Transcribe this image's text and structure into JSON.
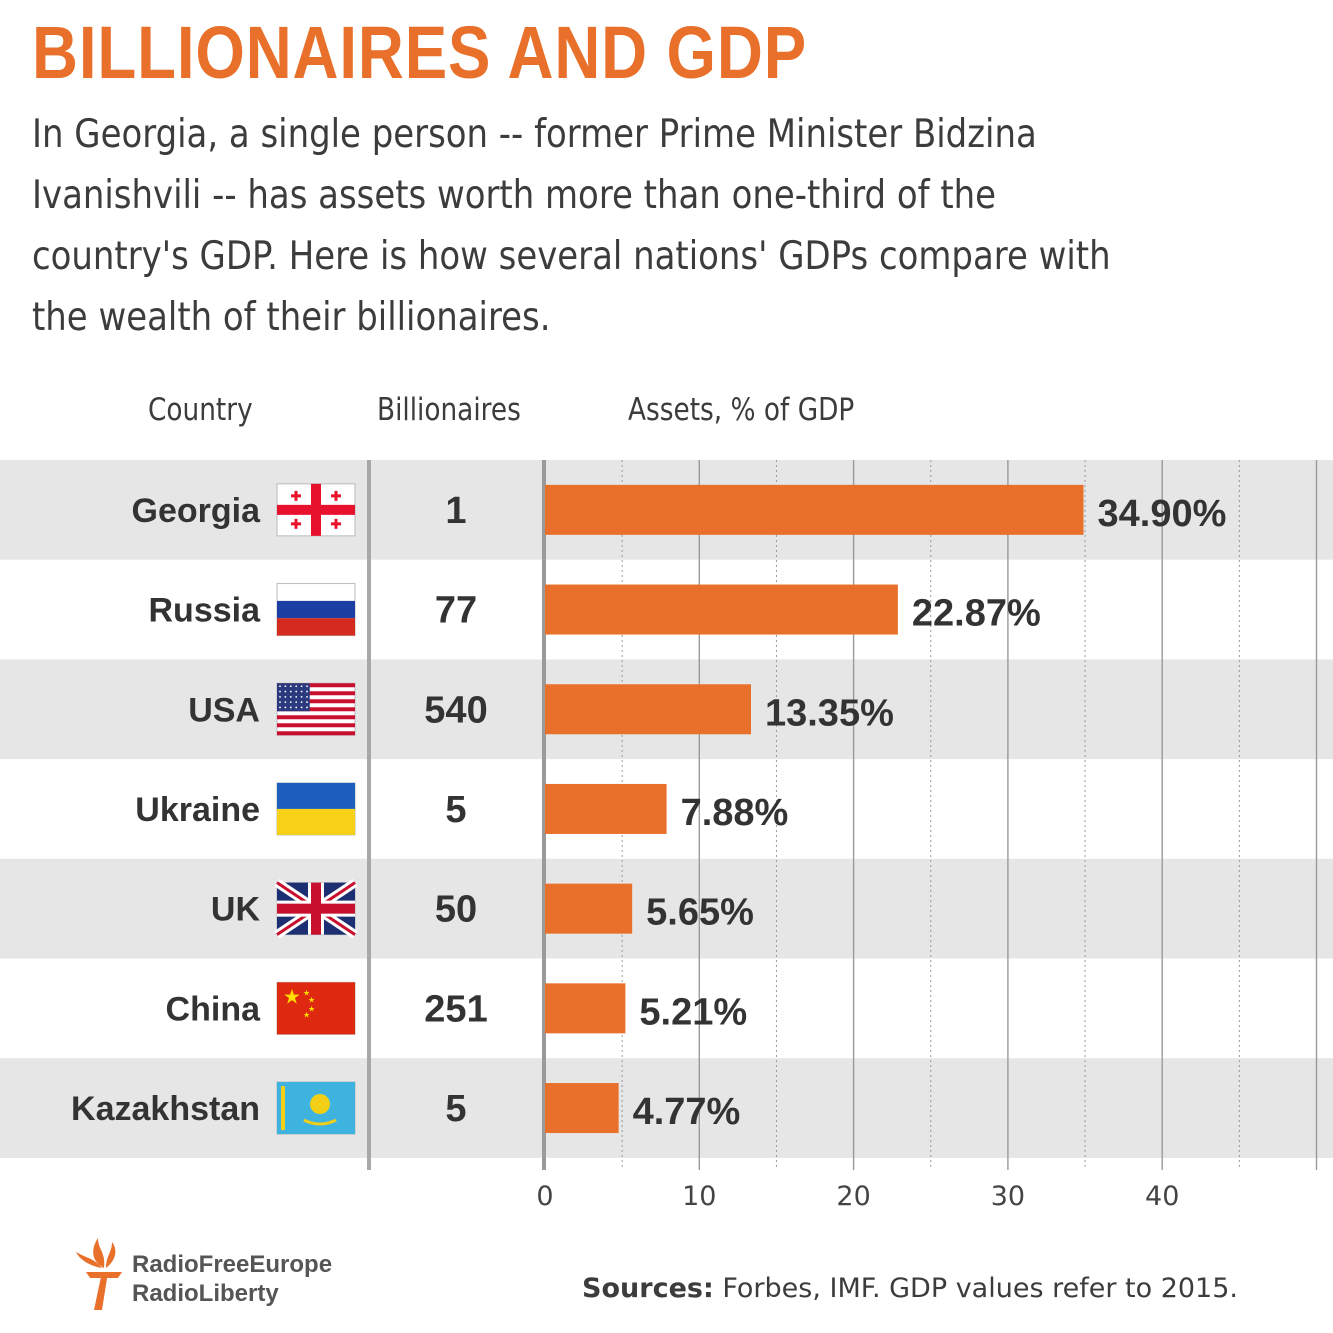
{
  "title": "BILLIONAIRES AND GDP",
  "subtitle": "In Georgia, a single person -- former Prime Minister Bidzina Ivanishvili -- has assets worth more than one-third of the country's GDP.  Here is how several nations' GDPs compare with the wealth of their billionaires.",
  "headers": {
    "country": "Country",
    "billionaires": "Billionaires",
    "assets": "Assets, % of GDP"
  },
  "colors": {
    "accent": "#e8702a",
    "band": "#e6e6e6",
    "text": "#333333"
  },
  "chart_data": {
    "type": "bar",
    "orientation": "horizontal",
    "categories": [
      "Georgia",
      "Russia",
      "USA",
      "Ukraine",
      "UK",
      "China",
      "Kazakhstan"
    ],
    "billionaires": [
      "1",
      "77",
      "540",
      "5",
      "50",
      "251",
      "5"
    ],
    "values": [
      34.9,
      22.87,
      13.35,
      7.88,
      5.65,
      5.21,
      4.77
    ],
    "value_labels": [
      "34.90%",
      "22.87%",
      "13.35%",
      "7.88%",
      "5.65%",
      "5.21%",
      "4.77%"
    ],
    "flags": [
      "georgia-flag-icon",
      "russia-flag-icon",
      "usa-flag-icon",
      "ukraine-flag-icon",
      "uk-flag-icon",
      "china-flag-icon",
      "kazakhstan-flag-icon"
    ],
    "xlabel": "Assets, % of GDP",
    "xticks": [
      "0",
      "10",
      "20",
      "30",
      "40"
    ],
    "xlim": [
      0,
      50
    ],
    "grid": true
  },
  "sources": {
    "label": "Sources:",
    "text": " Forbes, IMF. GDP values refer to 2015."
  },
  "logo": {
    "line1": "RadioFreeEurope",
    "line2": "RadioLiberty"
  }
}
